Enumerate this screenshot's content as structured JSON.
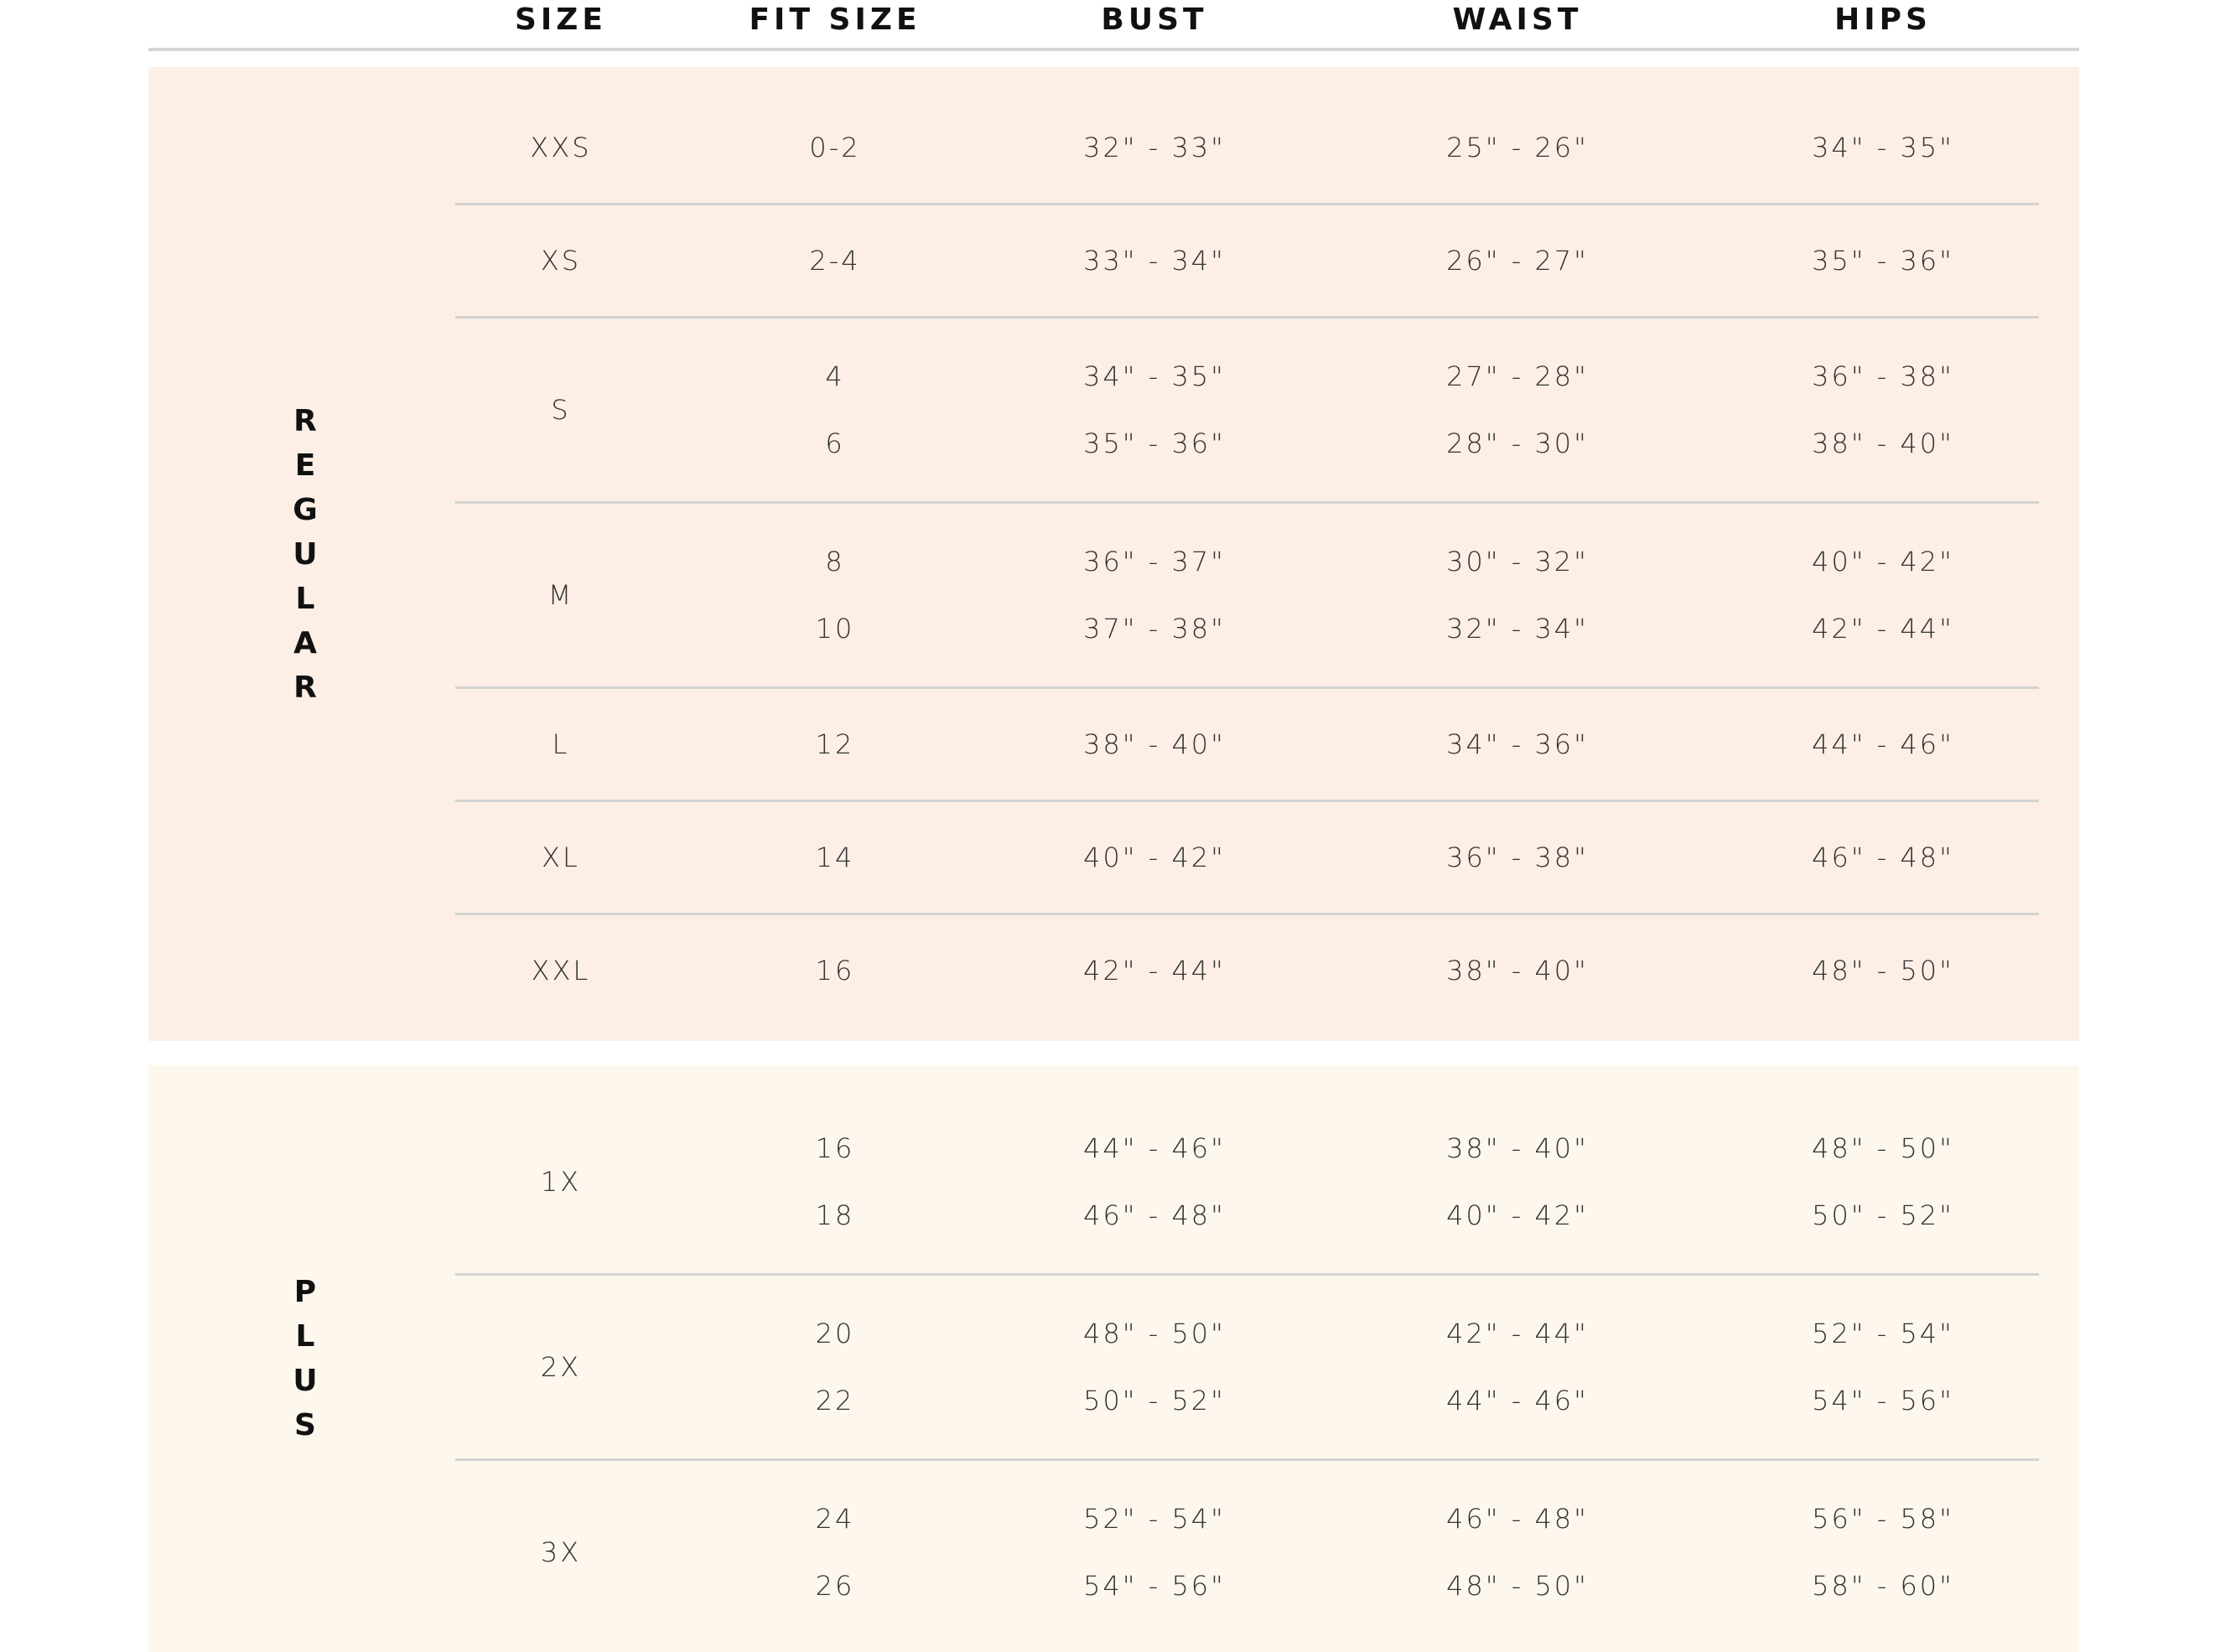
{
  "header": {
    "columns": [
      "SIZE",
      "FIT SIZE",
      "BUST",
      "WAIST",
      "HIPS"
    ]
  },
  "colors": {
    "regular_bg": "#fdefe5",
    "plus_bg": "#fdf7ed",
    "divider": "#d3d3d3"
  },
  "groups": [
    {
      "label": "REGULAR",
      "letters": [
        "R",
        "E",
        "G",
        "U",
        "L",
        "A",
        "R"
      ],
      "rows": [
        {
          "size": "XXS",
          "fits": [
            {
              "fit": "0-2",
              "bust": "32\" - 33\"",
              "waist": "25\" - 26\"",
              "hips": "34\" - 35\""
            }
          ]
        },
        {
          "size": "XS",
          "fits": [
            {
              "fit": "2-4",
              "bust": "33\" - 34\"",
              "waist": "26\" - 27\"",
              "hips": "35\" - 36\""
            }
          ]
        },
        {
          "size": "S",
          "fits": [
            {
              "fit": "4",
              "bust": "34\" - 35\"",
              "waist": "27\" - 28\"",
              "hips": "36\" - 38\""
            },
            {
              "fit": "6",
              "bust": "35\" - 36\"",
              "waist": "28\" - 30\"",
              "hips": "38\" - 40\""
            }
          ]
        },
        {
          "size": "M",
          "fits": [
            {
              "fit": "8",
              "bust": "36\" - 37\"",
              "waist": "30\" - 32\"",
              "hips": "40\" - 42\""
            },
            {
              "fit": "10",
              "bust": "37\" - 38\"",
              "waist": "32\" - 34\"",
              "hips": "42\" - 44\""
            }
          ]
        },
        {
          "size": "L",
          "fits": [
            {
              "fit": "12",
              "bust": "38\" - 40\"",
              "waist": "34\" - 36\"",
              "hips": "44\" - 46\""
            }
          ]
        },
        {
          "size": "XL",
          "fits": [
            {
              "fit": "14",
              "bust": "40\" - 42\"",
              "waist": "36\" - 38\"",
              "hips": "46\" - 48\""
            }
          ]
        },
        {
          "size": "XXL",
          "fits": [
            {
              "fit": "16",
              "bust": "42\" - 44\"",
              "waist": "38\" - 40\"",
              "hips": "48\" - 50\""
            }
          ]
        }
      ]
    },
    {
      "label": "PLUS",
      "letters": [
        "P",
        "L",
        "U",
        "S"
      ],
      "rows": [
        {
          "size": "1X",
          "fits": [
            {
              "fit": "16",
              "bust": "44\" - 46\"",
              "waist": "38\" - 40\"",
              "hips": "48\" - 50\""
            },
            {
              "fit": "18",
              "bust": "46\" - 48\"",
              "waist": "40\" - 42\"",
              "hips": "50\" - 52\""
            }
          ]
        },
        {
          "size": "2X",
          "fits": [
            {
              "fit": "20",
              "bust": "48\" - 50\"",
              "waist": "42\" - 44\"",
              "hips": "52\" - 54\""
            },
            {
              "fit": "22",
              "bust": "50\" - 52\"",
              "waist": "44\" - 46\"",
              "hips": "54\" - 56\""
            }
          ]
        },
        {
          "size": "3X",
          "fits": [
            {
              "fit": "24",
              "bust": "52\" - 54\"",
              "waist": "46\" - 48\"",
              "hips": "56\" - 58\""
            },
            {
              "fit": "26",
              "bust": "54\" - 56\"",
              "waist": "48\" - 50\"",
              "hips": "58\" - 60\""
            }
          ]
        }
      ]
    }
  ]
}
